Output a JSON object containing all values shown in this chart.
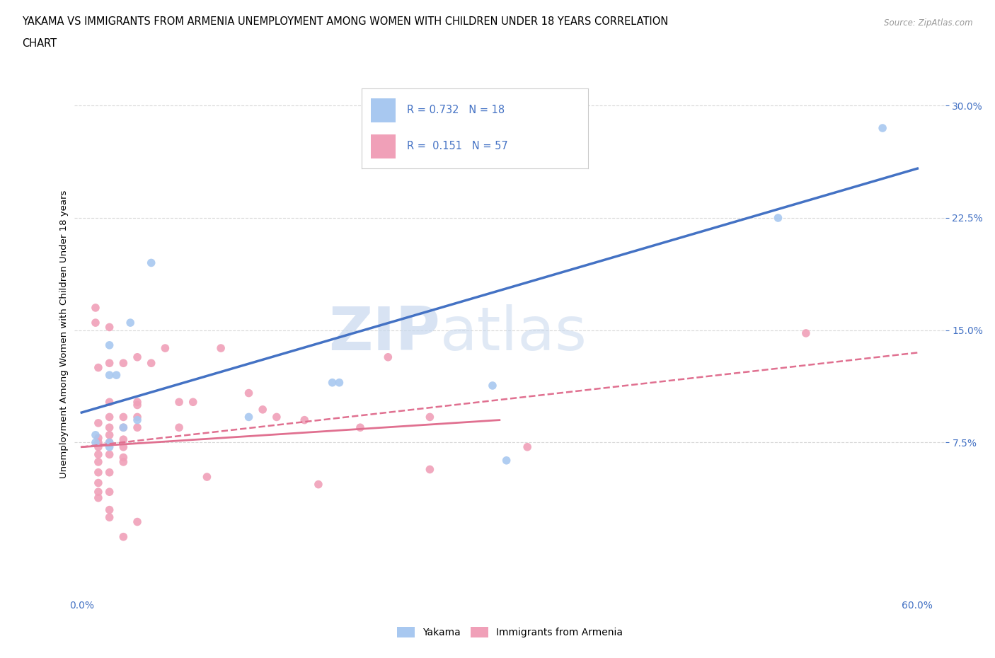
{
  "title_line1": "YAKAMA VS IMMIGRANTS FROM ARMENIA UNEMPLOYMENT AMONG WOMEN WITH CHILDREN UNDER 18 YEARS CORRELATION",
  "title_line2": "CHART",
  "source_text": "Source: ZipAtlas.com",
  "ylabel": "Unemployment Among Women with Children Under 18 years",
  "xlim": [
    -0.005,
    0.62
  ],
  "ylim": [
    -0.025,
    0.32
  ],
  "xticks": [
    0.0,
    0.12,
    0.24,
    0.36,
    0.48,
    0.6
  ],
  "xtick_labels": [
    "0.0%",
    "",
    "",
    "",
    "",
    "60.0%"
  ],
  "ytick_labels": [
    "7.5%",
    "15.0%",
    "22.5%",
    "30.0%"
  ],
  "yticks": [
    0.075,
    0.15,
    0.225,
    0.3
  ],
  "yakama_color": "#a8c8f0",
  "armenia_color": "#f0a0b8",
  "yakama_line_color": "#4472c4",
  "armenia_line_color": "#e07090",
  "R_yakama": 0.732,
  "N_yakama": 18,
  "R_armenia": 0.151,
  "N_armenia": 57,
  "legend_label_yakama": "Yakama",
  "legend_label_armenia": "Immigrants from Armenia",
  "watermark_zip": "ZIP",
  "watermark_atlas": "atlas",
  "background_color": "#ffffff",
  "grid_color": "#d8d8d8",
  "yakama_scatter": [
    [
      0.02,
      0.14
    ],
    [
      0.035,
      0.155
    ],
    [
      0.05,
      0.195
    ],
    [
      0.02,
      0.12
    ],
    [
      0.025,
      0.12
    ],
    [
      0.04,
      0.09
    ],
    [
      0.01,
      0.075
    ],
    [
      0.02,
      0.075
    ],
    [
      0.01,
      0.08
    ],
    [
      0.03,
      0.085
    ],
    [
      0.02,
      0.072
    ],
    [
      0.12,
      0.092
    ],
    [
      0.18,
      0.115
    ],
    [
      0.185,
      0.115
    ],
    [
      0.295,
      0.113
    ],
    [
      0.305,
      0.063
    ],
    [
      0.5,
      0.225
    ],
    [
      0.575,
      0.285
    ]
  ],
  "armenia_scatter": [
    [
      0.01,
      0.165
    ],
    [
      0.01,
      0.155
    ],
    [
      0.012,
      0.125
    ],
    [
      0.012,
      0.088
    ],
    [
      0.012,
      0.078
    ],
    [
      0.012,
      0.075
    ],
    [
      0.012,
      0.072
    ],
    [
      0.012,
      0.067
    ],
    [
      0.012,
      0.062
    ],
    [
      0.012,
      0.055
    ],
    [
      0.012,
      0.048
    ],
    [
      0.012,
      0.042
    ],
    [
      0.012,
      0.038
    ],
    [
      0.02,
      0.152
    ],
    [
      0.02,
      0.128
    ],
    [
      0.02,
      0.102
    ],
    [
      0.02,
      0.092
    ],
    [
      0.02,
      0.085
    ],
    [
      0.02,
      0.08
    ],
    [
      0.02,
      0.075
    ],
    [
      0.02,
      0.067
    ],
    [
      0.02,
      0.055
    ],
    [
      0.02,
      0.042
    ],
    [
      0.02,
      0.03
    ],
    [
      0.02,
      0.025
    ],
    [
      0.03,
      0.128
    ],
    [
      0.03,
      0.092
    ],
    [
      0.03,
      0.085
    ],
    [
      0.03,
      0.077
    ],
    [
      0.03,
      0.072
    ],
    [
      0.03,
      0.065
    ],
    [
      0.03,
      0.062
    ],
    [
      0.03,
      0.012
    ],
    [
      0.04,
      0.132
    ],
    [
      0.04,
      0.102
    ],
    [
      0.04,
      0.1
    ],
    [
      0.04,
      0.092
    ],
    [
      0.04,
      0.085
    ],
    [
      0.04,
      0.022
    ],
    [
      0.05,
      0.128
    ],
    [
      0.06,
      0.138
    ],
    [
      0.07,
      0.102
    ],
    [
      0.07,
      0.085
    ],
    [
      0.08,
      0.102
    ],
    [
      0.09,
      0.052
    ],
    [
      0.1,
      0.138
    ],
    [
      0.12,
      0.108
    ],
    [
      0.13,
      0.097
    ],
    [
      0.14,
      0.092
    ],
    [
      0.16,
      0.09
    ],
    [
      0.17,
      0.047
    ],
    [
      0.2,
      0.085
    ],
    [
      0.22,
      0.132
    ],
    [
      0.25,
      0.092
    ],
    [
      0.25,
      0.057
    ],
    [
      0.32,
      0.072
    ],
    [
      0.52,
      0.148
    ]
  ]
}
